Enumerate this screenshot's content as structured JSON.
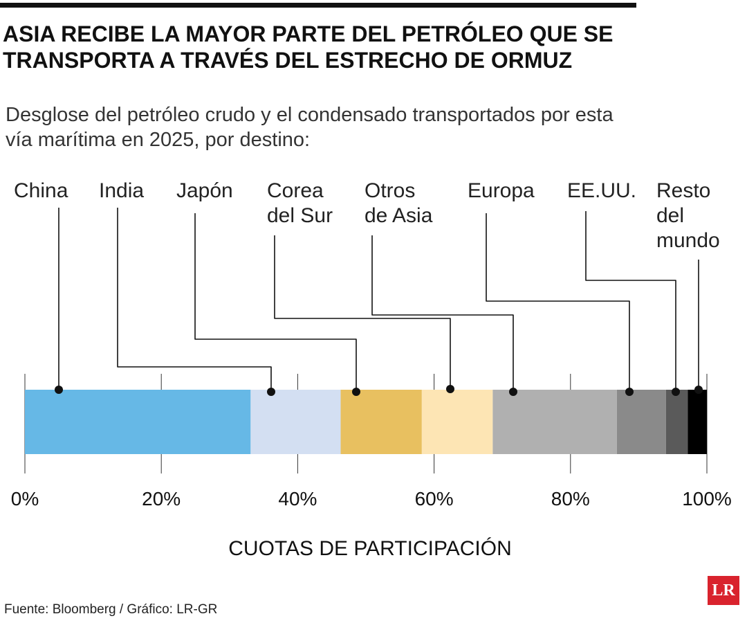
{
  "chart_data": {
    "type": "stacked-bar",
    "title": "ASIA RECIBE LA MAYOR PARTE DEL PETRÓLEO QUE SE TRANSPORTA A TRAVÉS DEL ESTRECHO DE ORMUZ",
    "subtitle": "Desglose del petróleo crudo y el condensado transportados por esta vía marítima en 2025, por destino:",
    "x_label": "CUOTAS DE PARTICIPACIÓN",
    "source": "Fuente: Bloomberg / Gráfico: LR-GR",
    "logo": "LR",
    "xlim": [
      0,
      100
    ],
    "xticks": [
      {
        "value": 0,
        "label": "0%"
      },
      {
        "value": 20,
        "label": "20%"
      },
      {
        "value": 40,
        "label": "40%"
      },
      {
        "value": 60,
        "label": "60%"
      },
      {
        "value": 80,
        "label": "80%"
      },
      {
        "value": 100,
        "label": "100%"
      }
    ],
    "grid": true,
    "series": [
      {
        "name": "China",
        "color": "#66b8e6",
        "values": [
          33.1
        ]
      },
      {
        "name": "India",
        "color": "#d3dff2",
        "values": [
          13.2
        ]
      },
      {
        "name": "Japón",
        "color": "#e8c060",
        "values": [
          11.9
        ]
      },
      {
        "name": "Corea del Sur",
        "color": "#fde5b4",
        "values": [
          10.4
        ]
      },
      {
        "name": "Otros de Asia",
        "color": "#b0b0b0",
        "values": [
          18.2
        ]
      },
      {
        "name": "Europa",
        "color": "#8a8a8a",
        "values": [
          7.2
        ]
      },
      {
        "name": "EE.UU.",
        "color": "#5a5a5a",
        "values": [
          3.2
        ]
      },
      {
        "name": "Resto del mundo",
        "color": "#000000",
        "values": [
          2.8
        ]
      }
    ]
  }
}
